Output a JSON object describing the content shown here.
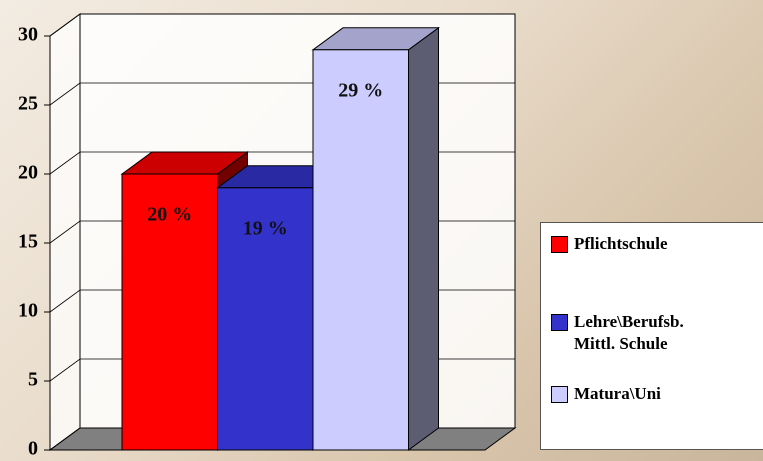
{
  "chart_data": {
    "type": "bar3d",
    "categories": [
      null
    ],
    "series": [
      {
        "name": "Pflichtschule",
        "color": "#ff0000",
        "values": [
          20
        ],
        "value_labels": [
          "20 %"
        ]
      },
      {
        "name": "Lehre\\Berufsb.\nMittl. Schule",
        "color": "#3333cc",
        "values": [
          19
        ],
        "value_labels": [
          "19 %"
        ]
      },
      {
        "name": "Matura\\Uni",
        "color": "#ccccff",
        "values": [
          29
        ],
        "value_labels": [
          "29 %"
        ]
      }
    ],
    "ylim": [
      0,
      30
    ],
    "yticks": [
      0,
      5,
      10,
      15,
      20,
      25,
      30
    ],
    "grid": true
  }
}
